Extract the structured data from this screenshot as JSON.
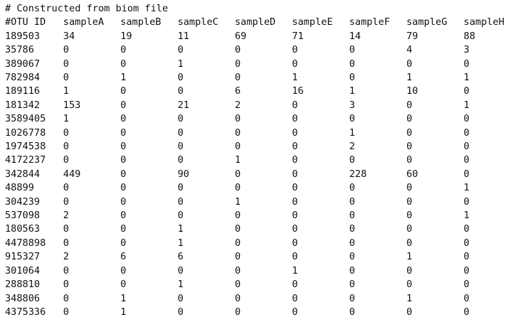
{
  "header_comment": "# Constructed from biom file",
  "table": {
    "columns": [
      "#OTU ID",
      "sampleA",
      "sampleB",
      "sampleC",
      "sampleD",
      "sampleE",
      "sampleF",
      "sampleG",
      "sampleH"
    ],
    "rows": [
      [
        "189503",
        "34",
        "19",
        "11",
        "69",
        "71",
        "14",
        "79",
        "88"
      ],
      [
        "35786",
        "0",
        "0",
        "0",
        "0",
        "0",
        "0",
        "4",
        "3"
      ],
      [
        "389067",
        "0",
        "0",
        "1",
        "0",
        "0",
        "0",
        "0",
        "0"
      ],
      [
        "782984",
        "0",
        "1",
        "0",
        "0",
        "1",
        "0",
        "1",
        "1"
      ],
      [
        "189116",
        "1",
        "0",
        "0",
        "6",
        "16",
        "1",
        "10",
        "0"
      ],
      [
        "181342",
        "153",
        "0",
        "21",
        "2",
        "0",
        "3",
        "0",
        "1"
      ],
      [
        "3589405",
        "1",
        "0",
        "0",
        "0",
        "0",
        "0",
        "0",
        "0"
      ],
      [
        "1026778",
        "0",
        "0",
        "0",
        "0",
        "0",
        "1",
        "0",
        "0"
      ],
      [
        "1974538",
        "0",
        "0",
        "0",
        "0",
        "0",
        "2",
        "0",
        "0"
      ],
      [
        "4172237",
        "0",
        "0",
        "0",
        "1",
        "0",
        "0",
        "0",
        "0"
      ],
      [
        "342844",
        "449",
        "0",
        "90",
        "0",
        "0",
        "228",
        "60",
        "0"
      ],
      [
        "48899",
        "0",
        "0",
        "0",
        "0",
        "0",
        "0",
        "0",
        "1"
      ],
      [
        "304239",
        "0",
        "0",
        "0",
        "1",
        "0",
        "0",
        "0",
        "0"
      ],
      [
        "537098",
        "2",
        "0",
        "0",
        "0",
        "0",
        "0",
        "0",
        "1"
      ],
      [
        "180563",
        "0",
        "0",
        "1",
        "0",
        "0",
        "0",
        "0",
        "0"
      ],
      [
        "4478898",
        "0",
        "0",
        "1",
        "0",
        "0",
        "0",
        "0",
        "0"
      ],
      [
        "915327",
        "2",
        "6",
        "6",
        "0",
        "0",
        "0",
        "1",
        "0"
      ],
      [
        "301064",
        "0",
        "0",
        "0",
        "0",
        "1",
        "0",
        "0",
        "0"
      ],
      [
        "288810",
        "0",
        "0",
        "1",
        "0",
        "0",
        "0",
        "0",
        "0"
      ],
      [
        "348806",
        "0",
        "1",
        "0",
        "0",
        "0",
        "0",
        "1",
        "0"
      ],
      [
        "4375336",
        "0",
        "1",
        "0",
        "0",
        "0",
        "0",
        "0",
        "0"
      ]
    ]
  }
}
